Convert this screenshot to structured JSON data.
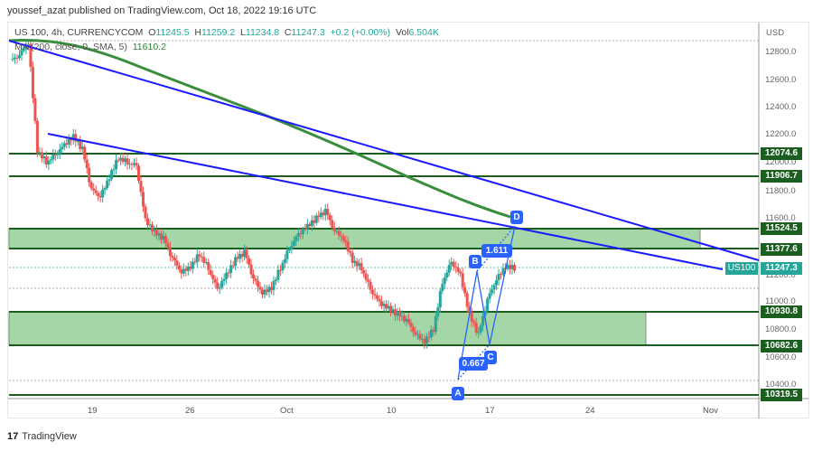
{
  "header": {
    "published": "youssef_azat published on TradingView.com, Oct 18, 2022 19:16 UTC"
  },
  "legend": {
    "symbol": "US 100, 4h, CURRENCYCOM",
    "open_label": "O",
    "open": "11245.5",
    "high_label": "H",
    "high": "11259.2",
    "low_label": "L",
    "low": "11234.8",
    "close_label": "C",
    "close": "11247.3",
    "change": "+0.2 (+0.00%)",
    "vol_label": "Vol",
    "vol": "6.504K",
    "ma_label": "MA (200, close, 0, SMA, 5)",
    "ma_value": "11610.2"
  },
  "price_axis": {
    "currency": "USD",
    "ticks": [
      "12800.0",
      "12600.0",
      "12400.0",
      "12200.0",
      "12000.0",
      "11800.0",
      "11600.0",
      "11200.0",
      "11000.0",
      "10800.0",
      "10600.0",
      "10400.0"
    ],
    "level_tags": [
      "12074.6",
      "11906.7",
      "11524.5",
      "11377.6",
      "10930.8",
      "10682.6",
      "10319.5"
    ],
    "current_price": "11247.3",
    "symbol_tag": "US100"
  },
  "time_axis": {
    "ticks": [
      "19",
      "26",
      "Oct",
      "10",
      "17",
      "24",
      "Nov"
    ]
  },
  "pattern": {
    "points": [
      "A",
      "B",
      "C",
      "D"
    ],
    "ratio_ab_c": "0.667",
    "ratio_bc_d": "1.611"
  },
  "footer": {
    "brand": "TradingView",
    "logo": "17"
  },
  "colors": {
    "up": "#26a69a",
    "down": "#ef5350",
    "ma": "#388e3c",
    "trendline": "#1a1aff",
    "zone_fill": "#a5d6a7",
    "level_line": "#1b5e20",
    "pattern": "#2962ff"
  },
  "chart_data": {
    "type": "candlestick",
    "title": "US 100, 4h, CURRENCYCOM",
    "xlabel": "",
    "ylabel": "USD",
    "x_ticks": [
      "19",
      "26",
      "Oct",
      "10",
      "17",
      "24",
      "Nov"
    ],
    "y_ticks": [
      10400,
      10600,
      10800,
      11000,
      11200,
      11600,
      11800,
      12000,
      12200,
      12400,
      12600,
      12800
    ],
    "ylim": [
      10260,
      12960
    ],
    "last": {
      "open": 11245.5,
      "high": 11259.2,
      "low": 11234.8,
      "close": 11247.3,
      "change": 0.2,
      "change_pct": 0.0,
      "volume": "6.504K"
    },
    "ma200": {
      "label": "MA (200, close, 0, SMA, 5)",
      "last": 11610.2
    },
    "horizontal_levels": [
      12074.6,
      11906.7,
      11524.5,
      11377.6,
      10930.8,
      10682.6,
      10319.5
    ],
    "zones": [
      {
        "top": 11524.5,
        "bottom": 11377.6
      },
      {
        "top": 10930.8,
        "bottom": 10682.6
      }
    ],
    "trendlines": [
      {
        "from": {
          "x": "Sep 13",
          "y": 12880
        },
        "to": {
          "x": "Nov 3",
          "y": 11350
        }
      },
      {
        "from": {
          "x": "Sep 15",
          "y": 12210
        },
        "to": {
          "x": "Nov 1",
          "y": 11240
        }
      }
    ],
    "abcd_pattern": {
      "A": 10440,
      "B": 11330,
      "C": 10710,
      "D": 11600,
      "ratios": {
        "BC/AB": 0.667,
        "CD/BC": 1.611
      }
    },
    "approx_closes": [
      12780,
      12880,
      12100,
      12020,
      12080,
      12150,
      12200,
      12100,
      11800,
      11750,
      11900,
      12050,
      12020,
      12000,
      11600,
      11500,
      11450,
      11300,
      11200,
      11250,
      11350,
      11250,
      11100,
      11200,
      11300,
      11350,
      11150,
      11050,
      11100,
      11250,
      11400,
      11500,
      11550,
      11600,
      11650,
      11500,
      11450,
      11300,
      11250,
      11100,
      11000,
      10950,
      10900,
      10850,
      10750,
      10700,
      10800,
      11150,
      11300,
      11200,
      10900,
      10750,
      11000,
      11150,
      11250,
      11247.3
    ]
  }
}
